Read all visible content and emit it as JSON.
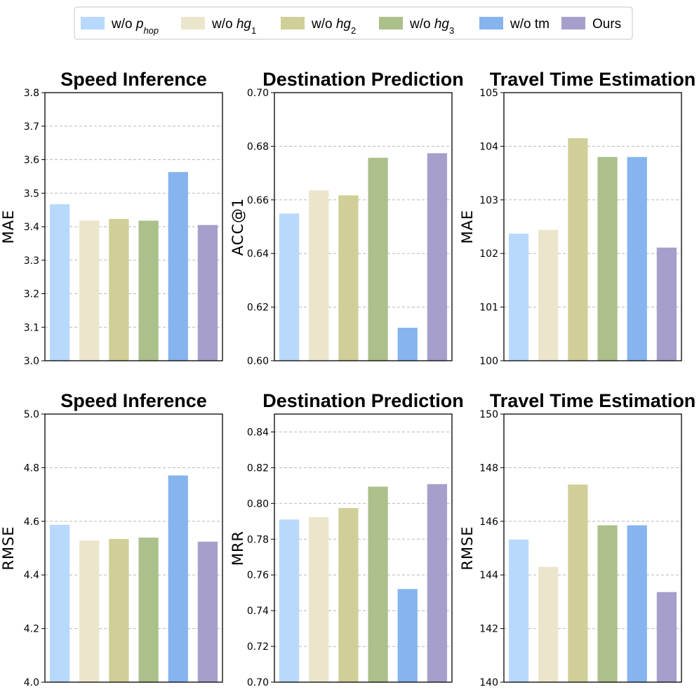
{
  "legend": {
    "items": [
      {
        "prefix": "w/o ",
        "main": "p",
        "sub": "hop",
        "italic": true,
        "color": "#b8d9fb"
      },
      {
        "prefix": "w/o ",
        "main": "hg",
        "sub": "1",
        "italic": true,
        "color": "#ebe5cc"
      },
      {
        "prefix": "w/o ",
        "main": "hg",
        "sub": "2",
        "italic": true,
        "color": "#cfcf97"
      },
      {
        "prefix": "w/o ",
        "main": "hg",
        "sub": "3",
        "italic": true,
        "color": "#abc08a"
      },
      {
        "prefix": "w/o tm",
        "main": "",
        "sub": "",
        "italic": false,
        "color": "#85b4ef"
      },
      {
        "prefix": "Ours",
        "main": "",
        "sub": "",
        "italic": false,
        "color": "#a69ecb"
      }
    ]
  },
  "chart_data": [
    {
      "type": "bar",
      "title": "Speed Inference",
      "ylabel": "MAE",
      "ylim": [
        3.0,
        3.8
      ],
      "yticks": [
        "3.0",
        "3.1",
        "3.2",
        "3.3",
        "3.4",
        "3.5",
        "3.6",
        "3.7",
        "3.8"
      ],
      "categories": [
        "w/o p_hop",
        "w/o hg_1",
        "w/o hg_2",
        "w/o hg_3",
        "w/o tm",
        "Ours"
      ],
      "values": [
        3.467,
        3.418,
        3.423,
        3.418,
        3.563,
        3.405
      ],
      "grid": true
    },
    {
      "type": "bar",
      "title": "Destination Prediction",
      "ylabel": "ACC@1",
      "ylim": [
        0.6,
        0.7
      ],
      "yticks": [
        "0.60",
        "0.62",
        "0.64",
        "0.66",
        "0.68",
        "0.70"
      ],
      "categories": [
        "w/o p_hop",
        "w/o hg_1",
        "w/o hg_2",
        "w/o hg_3",
        "w/o tm",
        "Ours"
      ],
      "values": [
        0.6549,
        0.6635,
        0.6617,
        0.6757,
        0.6123,
        0.6774
      ],
      "grid": true
    },
    {
      "type": "bar",
      "title": "Travel Time Estimation",
      "ylabel": "MAE",
      "ylim": [
        100,
        105
      ],
      "yticks": [
        "100",
        "101",
        "102",
        "103",
        "104",
        "105"
      ],
      "categories": [
        "w/o p_hop",
        "w/o hg_1",
        "w/o hg_2",
        "w/o hg_3",
        "w/o tm",
        "Ours"
      ],
      "values": [
        102.37,
        102.44,
        104.15,
        103.8,
        103.8,
        102.11
      ],
      "grid": true
    },
    {
      "type": "bar",
      "title": "Speed Inference",
      "ylabel": "RMSE",
      "ylim": [
        4.0,
        5.0
      ],
      "yticks": [
        "4.0",
        "4.2",
        "4.4",
        "4.6",
        "4.8",
        "5.0"
      ],
      "categories": [
        "w/o p_hop",
        "w/o hg_1",
        "w/o hg_2",
        "w/o hg_3",
        "w/o tm",
        "Ours"
      ],
      "values": [
        4.587,
        4.528,
        4.534,
        4.539,
        4.771,
        4.524
      ],
      "grid": true
    },
    {
      "type": "bar",
      "title": "Destination Prediction",
      "ylabel": "MRR",
      "ylim": [
        0.7,
        0.85
      ],
      "yticks": [
        "0.70",
        "0.72",
        "0.74",
        "0.76",
        "0.78",
        "0.80",
        "0.82",
        "0.84"
      ],
      "categories": [
        "w/o p_hop",
        "w/o hg_1",
        "w/o hg_2",
        "w/o hg_3",
        "w/o tm",
        "Ours"
      ],
      "values": [
        0.791,
        0.7924,
        0.7974,
        0.8094,
        0.7521,
        0.8108
      ],
      "grid": true
    },
    {
      "type": "bar",
      "title": "Travel Time Estimation",
      "ylabel": "RMSE",
      "ylim": [
        140,
        150
      ],
      "yticks": [
        "140",
        "142",
        "144",
        "146",
        "148",
        "150"
      ],
      "categories": [
        "w/o p_hop",
        "w/o hg_1",
        "w/o hg_2",
        "w/o hg_3",
        "w/o tm",
        "Ours"
      ],
      "values": [
        145.32,
        144.3,
        147.37,
        145.85,
        145.85,
        143.36
      ],
      "grid": true
    }
  ]
}
